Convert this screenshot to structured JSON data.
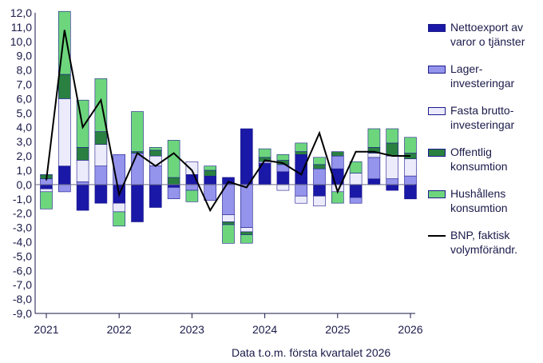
{
  "chart_data": {
    "type": "bar",
    "stacked": true,
    "x_labels": [
      "2021",
      "2022",
      "2023",
      "2024",
      "2025",
      "2026"
    ],
    "periods": [
      "2021K1",
      "2021K2",
      "2021K3",
      "2021K4",
      "2022K1",
      "2022K2",
      "2022K3",
      "2022K4",
      "2023K1",
      "2023K2",
      "2023K3",
      "2023K4",
      "2024K1",
      "2024K2",
      "2024K3",
      "2024K4",
      "2025K1",
      "2025K2",
      "2025K3",
      "2025K4",
      "2026K1"
    ],
    "ylim": [
      -9,
      12
    ],
    "yticks": [
      "12,0",
      "11,0",
      "10,0",
      "9,0",
      "8,0",
      "7,0",
      "6,0",
      "5,0",
      "4,0",
      "3,0",
      "2,0",
      "1,0",
      "0,0",
      "-1,0",
      "-2,0",
      "-3,0",
      "-4,0",
      "-5,0",
      "-6,0",
      "-7,0",
      "-8,0",
      "-9,0"
    ],
    "series": [
      {
        "name": "Nettoexport av varor o tjänster",
        "color": "#1a18a6",
        "values": [
          -0.3,
          1.3,
          -1.8,
          -1.3,
          -1.3,
          -2.6,
          -1.6,
          -0.2,
          0.7,
          0.6,
          0.5,
          3.9,
          1.5,
          0.9,
          2.1,
          -0.8,
          1.1,
          -0.9,
          0.4,
          -0.4,
          -1.0
        ]
      },
      {
        "name": "Lager-investeringar",
        "color": "#9494ec",
        "values": [
          0.4,
          -0.5,
          0.2,
          1.3,
          2.1,
          2.2,
          1.3,
          -0.8,
          -0.4,
          -1.1,
          -2.1,
          -3.0,
          0,
          0.5,
          -0.8,
          1.1,
          0.9,
          -0.4,
          1.5,
          0.4,
          0.6
        ]
      },
      {
        "name": "Fasta brutto-investeringar",
        "color": "#ebebfb",
        "values": [
          -0.2,
          4.7,
          1.5,
          1.5,
          -0.6,
          0,
          0.7,
          0,
          0.9,
          0,
          -0.5,
          -0.3,
          0.1,
          -0.4,
          -0.5,
          -0.7,
          -0.5,
          0.8,
          0.3,
          1.6,
          1.2
        ]
      },
      {
        "name": "Offentlig konsumtion",
        "color": "#2a8040",
        "values": [
          0.3,
          1.7,
          0.9,
          0.9,
          0,
          0.1,
          0.4,
          0.5,
          0,
          0.4,
          -0.2,
          -0.2,
          0.3,
          0.3,
          0.2,
          0.3,
          0.3,
          0,
          0.4,
          0.9,
          0.4
        ]
      },
      {
        "name": "Hushållens konsumtion",
        "color": "#6dd67d",
        "values": [
          -1.2,
          4.4,
          3.3,
          3.7,
          -1.0,
          2.8,
          0.2,
          2.6,
          -0.8,
          0.3,
          -1.3,
          -0.6,
          0.6,
          0.4,
          0.6,
          0.5,
          -0.8,
          0.8,
          1.3,
          1.0,
          1.1
        ]
      }
    ],
    "line": {
      "name": "BNP, faktisk volymförändr.",
      "color": "#000000",
      "values": [
        0.3,
        10.8,
        4.0,
        5.9,
        -0.7,
        2.2,
        1.3,
        2.2,
        1.0,
        -1.8,
        0.2,
        -0.2,
        1.7,
        1.5,
        0.7,
        3.6,
        -0.5,
        2.3,
        2.3,
        2.0,
        2.0
      ]
    },
    "legend_position": "right",
    "grid": false
  },
  "legend": {
    "items": [
      {
        "label": "Nettoexport av varor o tjänster",
        "color": "#1a18a6",
        "kind": "bar"
      },
      {
        "label": "Lager-investeringar",
        "color": "#9494ec",
        "kind": "bar"
      },
      {
        "label": "Fasta brutto-investeringar",
        "color": "#ebebfb",
        "kind": "bar"
      },
      {
        "label": "Offentlig konsumtion",
        "color": "#2a8040",
        "kind": "bar"
      },
      {
        "label": "Hushållens konsumtion",
        "color": "#6dd67d",
        "kind": "bar"
      },
      {
        "label": "BNP, faktisk volymförändr.",
        "color": "#000000",
        "kind": "line"
      }
    ]
  },
  "footer": "Data t.o.m. första kvartalet 2026"
}
